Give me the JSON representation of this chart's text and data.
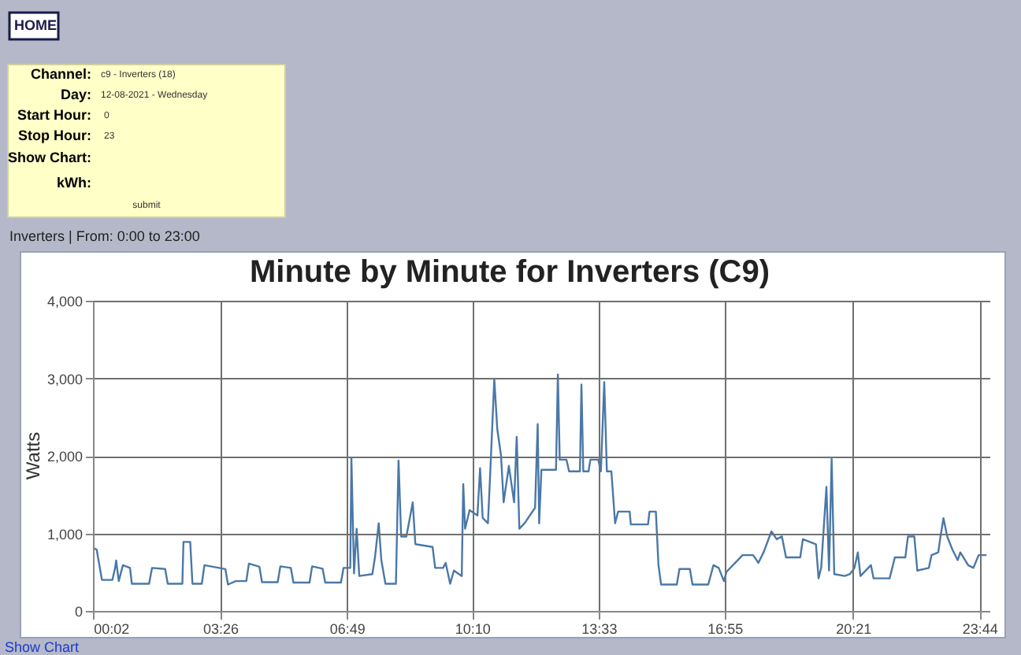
{
  "chart_data": {
    "type": "line",
    "title": "Minute by Minute for Inverters (C9)",
    "subtitle": "Inverters | From: 0:00 to 23:00",
    "ylabel": "Watts",
    "annotations": [
      "HOME",
      "Channel:",
      "c9 - Inverters (18)",
      "Day:",
      "12-08-2021 - Wednesday",
      "Start Hour:",
      "0",
      "Stop Hour:",
      "23",
      "Show Chart:",
      "kWh:",
      "submit",
      "Show Chart"
    ],
    "xlim": [
      0.03,
      24.0
    ],
    "xticks": [
      {
        "value": 0.033,
        "label": "00:02"
      },
      {
        "value": 3.433,
        "label": "03:26"
      },
      {
        "value": 6.817,
        "label": "06:49"
      },
      {
        "value": 10.167,
        "label": "10:10"
      },
      {
        "value": 13.55,
        "label": "13:33"
      },
      {
        "value": 16.917,
        "label": "16:55"
      },
      {
        "value": 20.35,
        "label": "20:21"
      },
      {
        "value": 23.733,
        "label": "23:44"
      }
    ],
    "ylim": [
      0,
      4000
    ],
    "yticks": [
      {
        "value": 0,
        "label": "0"
      },
      {
        "value": 1000,
        "label": "1,000"
      },
      {
        "value": 2000,
        "label": "2,000"
      },
      {
        "value": 3000,
        "label": "3,000"
      },
      {
        "value": 4000,
        "label": "4,000"
      }
    ],
    "grid": true,
    "marker": "none",
    "line_style": "solid",
    "series": [
      {
        "color": "#4a78a8",
        "x": [
          0.03,
          0.13,
          0.27,
          0.55,
          0.62,
          0.65,
          0.72,
          0.83,
          1.02,
          1.07,
          1.53,
          1.61,
          1.96,
          2.03,
          2.42,
          2.45,
          2.63,
          2.69,
          2.94,
          3.01,
          3.57,
          3.64,
          3.85,
          4.13,
          4.2,
          4.48,
          4.55,
          4.97,
          5.04,
          5.32,
          5.39,
          5.82,
          5.89,
          6.17,
          6.24,
          6.66,
          6.73,
          6.91,
          6.94,
          7.01,
          7.08,
          7.15,
          7.5,
          7.57,
          7.67,
          7.74,
          7.85,
          8.13,
          8.2,
          8.27,
          8.41,
          8.58,
          8.65,
          9.11,
          9.18,
          9.39,
          9.46,
          9.58,
          9.68,
          9.89,
          9.93,
          9.98,
          10.1,
          10.31,
          10.38,
          10.45,
          10.59,
          10.66,
          10.76,
          10.84,
          10.94,
          11.01,
          11.15,
          11.29,
          11.36,
          11.43,
          11.57,
          11.85,
          11.92,
          11.96,
          12.02,
          12.41,
          12.46,
          12.51,
          12.69,
          12.76,
          13.05,
          13.09,
          13.14,
          13.28,
          13.33,
          13.54,
          13.61,
          13.7,
          13.77,
          13.89,
          13.99,
          14.07,
          14.38,
          14.41,
          14.87,
          14.91,
          15.08,
          15.15,
          15.22,
          15.64,
          15.71,
          15.99,
          16.06,
          16.48,
          16.62,
          16.76,
          16.9,
          16.97,
          17.4,
          17.68,
          17.82,
          17.96,
          18.17,
          18.31,
          18.45,
          18.56,
          18.94,
          19.01,
          19.36,
          19.43,
          19.5,
          19.64,
          19.71,
          19.78,
          19.85,
          20.13,
          20.27,
          20.39,
          20.48,
          20.55,
          20.83,
          20.9,
          21.33,
          21.47,
          21.75,
          21.82,
          21.99,
          22.07,
          22.38,
          22.45,
          22.63,
          22.69,
          22.77,
          22.87,
          23.01,
          23.15,
          23.22,
          23.43,
          23.57,
          23.71,
          23.92
        ],
        "values": [
          810,
          790,
          400,
          400,
          550,
          650,
          385,
          590,
          555,
          350,
          350,
          555,
          540,
          350,
          350,
          890,
          890,
          350,
          350,
          590,
          540,
          340,
          385,
          385,
          610,
          570,
          370,
          370,
          575,
          555,
          365,
          365,
          575,
          545,
          365,
          365,
          555,
          555,
          1970,
          485,
          1060,
          450,
          475,
          690,
          1130,
          655,
          350,
          350,
          1940,
          960,
          960,
          1400,
          860,
          825,
          555,
          555,
          620,
          350,
          520,
          450,
          1635,
          1060,
          1300,
          1230,
          1840,
          1200,
          1130,
          1870,
          2990,
          2345,
          2005,
          1400,
          1870,
          1400,
          2245,
          1060,
          1130,
          1330,
          2410,
          1130,
          1820,
          1820,
          3050,
          1950,
          1950,
          1800,
          1800,
          2920,
          1800,
          1800,
          1950,
          1950,
          1800,
          2950,
          1800,
          1800,
          1130,
          1280,
          1280,
          1115,
          1115,
          1280,
          1280,
          590,
          340,
          340,
          540,
          540,
          340,
          340,
          590,
          555,
          385,
          505,
          720,
          720,
          620,
          755,
          1025,
          925,
          960,
          690,
          690,
          925,
          860,
          420,
          555,
          1600,
          520,
          1960,
          475,
          450,
          475,
          555,
          755,
          450,
          590,
          420,
          420,
          690,
          690,
          960,
          960,
          520,
          555,
          720,
          755,
          960,
          1195,
          960,
          790,
          655,
          755,
          590,
          555,
          720,
          720
        ]
      }
    ]
  }
}
